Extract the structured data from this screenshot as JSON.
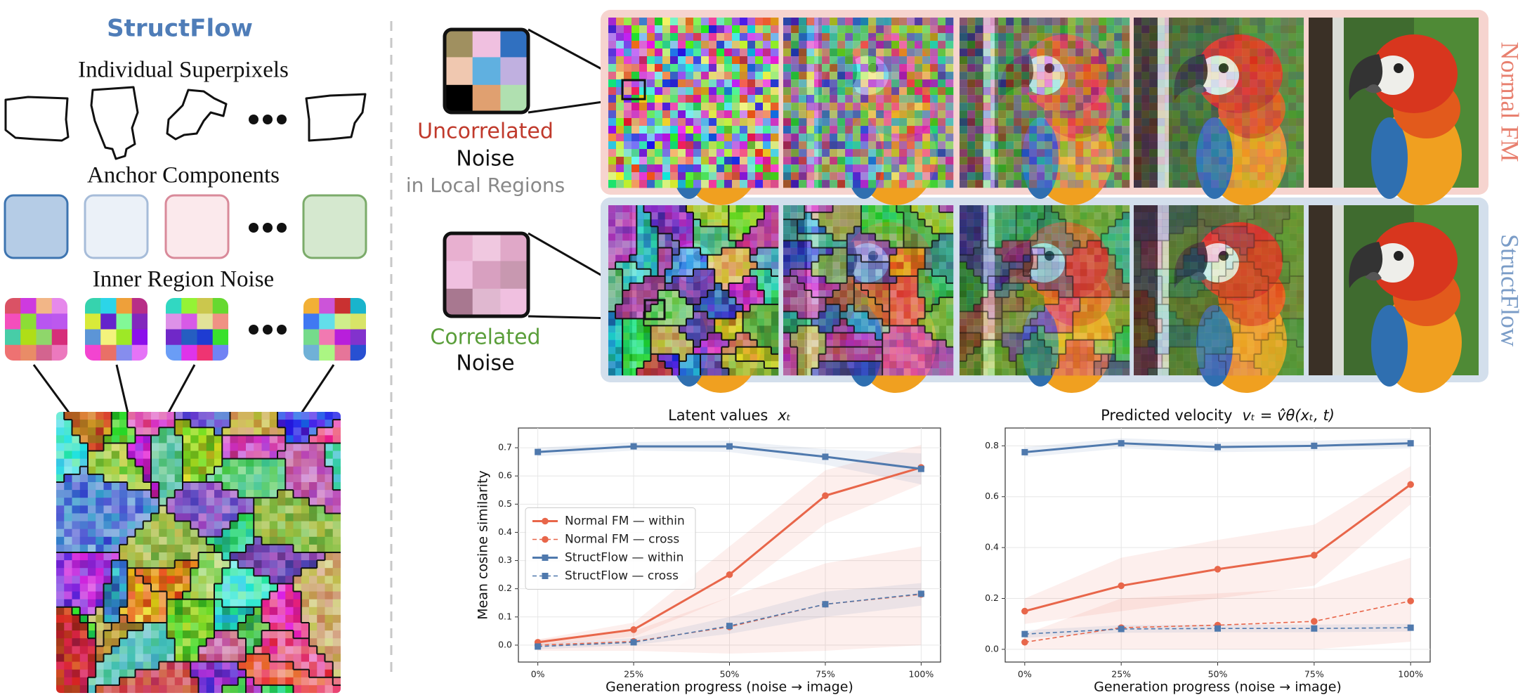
{
  "left_panel": {
    "title": "StructFlow",
    "sections": [
      "Individual Superpixels",
      "Anchor Components",
      "Inner Region Noise"
    ]
  },
  "middle": {
    "uncorrelated": {
      "label": "Uncorrelated",
      "lines": [
        "Noise",
        "in Local Regions"
      ]
    },
    "correlated": {
      "label": "Correlated",
      "lines": [
        "Noise"
      ]
    }
  },
  "rows": [
    "Normal FM",
    "StructFlow"
  ],
  "chart_data": [
    {
      "type": "line",
      "title": "Latent values",
      "title_math": "xₜ",
      "xlabel": "Generation progress  (noise → image)",
      "ylabel": "Mean cosine similarity",
      "categories": [
        "0%",
        "25%",
        "50%",
        "75%",
        "100%"
      ],
      "ylim": [
        -0.06,
        0.77
      ],
      "yticks": [
        0.0,
        0.1,
        0.2,
        0.3,
        0.4,
        0.5,
        0.6,
        0.7
      ],
      "grid": true,
      "legend": "center left",
      "series": [
        {
          "name": "Normal FM — within",
          "color": "#e8664a",
          "linestyle": "solid",
          "marker": "circle",
          "values": [
            0.01,
            0.055,
            0.25,
            0.53,
            0.63
          ],
          "band_lower": [
            0.0,
            0.03,
            0.17,
            0.43,
            0.57
          ],
          "band_upper": [
            0.02,
            0.08,
            0.35,
            0.62,
            0.71
          ]
        },
        {
          "name": "Normal FM — cross",
          "color": "#e8664a",
          "linestyle": "dashed",
          "marker": "circle",
          "values": [
            0.0,
            0.013,
            0.065,
            0.145,
            0.18
          ],
          "band_lower": [
            -0.02,
            -0.02,
            -0.03,
            -0.02,
            0.0
          ],
          "band_upper": [
            0.02,
            0.05,
            0.17,
            0.29,
            0.35
          ]
        },
        {
          "name": "StructFlow — within",
          "color": "#4f79ad",
          "linestyle": "solid",
          "marker": "square",
          "values": [
            0.685,
            0.705,
            0.705,
            0.668,
            0.625
          ],
          "band_lower": [
            0.67,
            0.69,
            0.685,
            0.64,
            0.57
          ],
          "band_upper": [
            0.7,
            0.72,
            0.725,
            0.695,
            0.68
          ]
        },
        {
          "name": "StructFlow — cross",
          "color": "#4f79ad",
          "linestyle": "dashed",
          "marker": "square",
          "values": [
            -0.005,
            0.01,
            0.068,
            0.145,
            0.182
          ],
          "band_lower": [
            -0.015,
            0.0,
            0.04,
            0.1,
            0.14
          ],
          "band_upper": [
            0.005,
            0.025,
            0.1,
            0.19,
            0.22
          ]
        }
      ]
    },
    {
      "type": "line",
      "title": "Predicted velocity",
      "title_math": "vₜ = v̂θ(xₜ, t)",
      "xlabel": "Generation progress  (noise → image)",
      "categories": [
        "0%",
        "25%",
        "50%",
        "75%",
        "100%"
      ],
      "ylim": [
        -0.05,
        0.87
      ],
      "yticks": [
        0.0,
        0.2,
        0.4,
        0.6,
        0.8
      ],
      "grid": true,
      "series": [
        {
          "color": "#e8664a",
          "linestyle": "solid",
          "marker": "circle",
          "values": [
            0.15,
            0.25,
            0.315,
            0.37,
            0.648
          ],
          "band_lower": [
            0.1,
            0.15,
            0.2,
            0.25,
            0.57
          ],
          "band_upper": [
            0.2,
            0.36,
            0.43,
            0.49,
            0.72
          ]
        },
        {
          "color": "#e8664a",
          "linestyle": "dashed",
          "marker": "circle",
          "values": [
            0.028,
            0.085,
            0.095,
            0.11,
            0.19
          ],
          "band_lower": [
            0.0,
            0.0,
            0.0,
            0.0,
            0.03
          ],
          "band_upper": [
            0.06,
            0.2,
            0.22,
            0.24,
            0.36
          ]
        },
        {
          "color": "#4f79ad",
          "linestyle": "solid",
          "marker": "square",
          "values": [
            0.775,
            0.81,
            0.795,
            0.8,
            0.81
          ],
          "band_lower": [
            0.755,
            0.79,
            0.775,
            0.78,
            0.79
          ],
          "band_upper": [
            0.795,
            0.83,
            0.815,
            0.82,
            0.83
          ]
        },
        {
          "color": "#4f79ad",
          "linestyle": "dashed",
          "marker": "square",
          "values": [
            0.06,
            0.08,
            0.082,
            0.082,
            0.085
          ],
          "band_lower": [
            0.045,
            0.065,
            0.067,
            0.067,
            0.07
          ],
          "band_upper": [
            0.075,
            0.095,
            0.097,
            0.097,
            0.1
          ]
        }
      ]
    }
  ]
}
